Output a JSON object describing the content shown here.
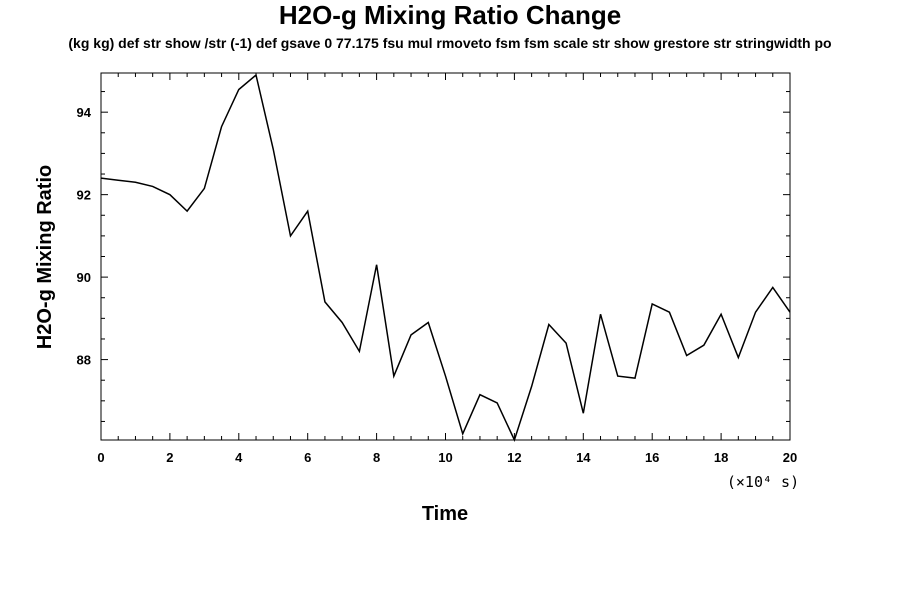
{
  "chart_data": {
    "type": "line",
    "title": "H2O-g Mixing Ratio Change",
    "subtitle": "(kg kg) def str show /str (-1) def gsave 0 77.175 fsu mul rmoveto fsm fsm scale str show grestore str stringwidth po",
    "xlabel": "Time",
    "ylabel": "H2O-g Mixing Ratio",
    "x_unit_label": "(×10⁴ s)",
    "xlim": [
      0,
      20
    ],
    "ylim": [
      86.05,
      94.95
    ],
    "x_ticks": [
      0,
      2,
      4,
      6,
      8,
      10,
      12,
      14,
      16,
      18,
      20
    ],
    "y_ticks": [
      88,
      90,
      92,
      94
    ],
    "grid": false,
    "series": [
      {
        "color": "#000000",
        "x": [
          0,
          0.5,
          1,
          1.5,
          2,
          2.5,
          3,
          3.5,
          4,
          4.5,
          5,
          5.5,
          6,
          6.5,
          7,
          7.5,
          8,
          8.5,
          9,
          9.5,
          10,
          10.5,
          11,
          11.5,
          12,
          12.5,
          13,
          13.5,
          14,
          14.5,
          15,
          15.5,
          16,
          16.5,
          17,
          17.5,
          18,
          18.5,
          19,
          19.5,
          20
        ],
        "y": [
          92.4,
          92.35,
          92.3,
          92.2,
          92.0,
          91.6,
          92.15,
          93.65,
          94.55,
          94.9,
          93.1,
          91.0,
          91.6,
          89.4,
          88.9,
          88.2,
          90.3,
          87.6,
          88.6,
          88.9,
          87.6,
          86.2,
          87.15,
          86.95,
          86.05,
          87.35,
          88.85,
          88.4,
          86.7,
          89.1,
          87.6,
          87.55,
          89.35,
          89.15,
          88.1,
          88.35,
          89.1,
          88.05,
          89.15,
          89.75,
          89.15
        ]
      }
    ]
  }
}
